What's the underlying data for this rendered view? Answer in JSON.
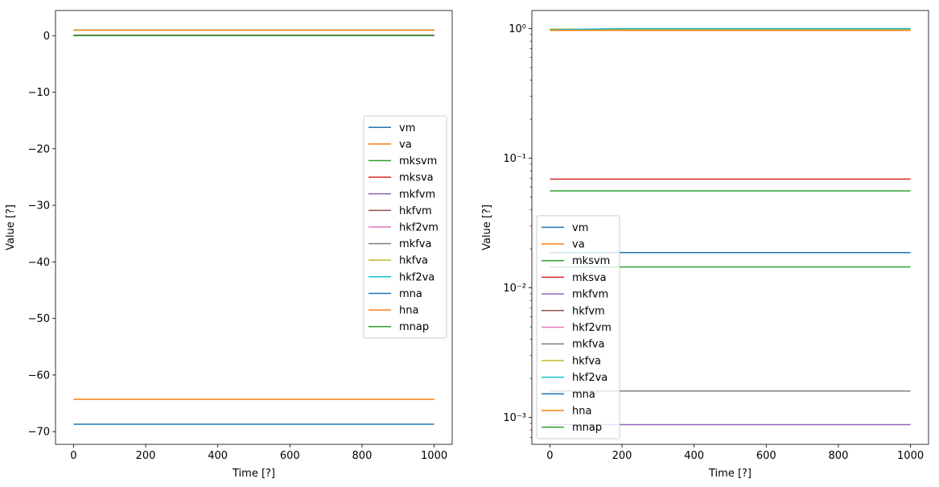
{
  "chart_data": [
    {
      "type": "line",
      "xlabel": "Time [?]",
      "ylabel": "Value [?]",
      "xlim": [
        -50,
        1050
      ],
      "ylim": [
        -72.25,
        4.45
      ],
      "yscale": "linear",
      "xticks": [
        0,
        200,
        400,
        600,
        800,
        1000
      ],
      "xtick_labels": [
        "0",
        "200",
        "400",
        "600",
        "800",
        "1000"
      ],
      "yticks": [
        0,
        -10,
        -20,
        -30,
        -40,
        -50,
        -60,
        -70
      ],
      "ytick_labels": [
        "0",
        "−10",
        "−20",
        "−30",
        "−40",
        "−50",
        "−60",
        "−70"
      ],
      "legend_position": "center-right",
      "series": [
        {
          "name": "vm",
          "color": "#1f77b4",
          "x": [
            0,
            1000
          ],
          "y": [
            -68.7,
            -68.7
          ]
        },
        {
          "name": "va",
          "color": "#ff7f0e",
          "x": [
            0,
            1000
          ],
          "y": [
            -64.3,
            -64.3
          ]
        },
        {
          "name": "mksvm",
          "color": "#2ca02c",
          "x": [
            0,
            1000
          ],
          "y": [
            0.056,
            0.056
          ]
        },
        {
          "name": "mksva",
          "color": "#d62728",
          "x": [
            0,
            1000
          ],
          "y": [
            0.069,
            0.069
          ]
        },
        {
          "name": "mkfvm",
          "color": "#9467bd",
          "x": [
            0,
            1000
          ],
          "y": [
            0.00088,
            0.00088
          ]
        },
        {
          "name": "hkfvm",
          "color": "#8c564b",
          "x": [
            0,
            1000
          ],
          "y": [
            0.99,
            0.99
          ]
        },
        {
          "name": "hkf2vm",
          "color": "#e377c2",
          "x": [
            0,
            1000
          ],
          "y": [
            0.99,
            0.99
          ]
        },
        {
          "name": "mkfva",
          "color": "#7f7f7f",
          "x": [
            0,
            1000
          ],
          "y": [
            0.0016,
            0.0016
          ]
        },
        {
          "name": "hkfva",
          "color": "#bcbd22",
          "x": [
            0,
            1000
          ],
          "y": [
            0.99,
            0.99
          ]
        },
        {
          "name": "hkf2va",
          "color": "#17becf",
          "x": [
            0,
            1000
          ],
          "y": [
            0.99,
            0.99
          ]
        },
        {
          "name": "mna",
          "color": "#1f77b4",
          "x": [
            0,
            1000
          ],
          "y": [
            0.0187,
            0.0187
          ]
        },
        {
          "name": "hna",
          "color": "#ff7f0e",
          "x": [
            0,
            1000
          ],
          "y": [
            0.97,
            0.97
          ]
        },
        {
          "name": "mnap",
          "color": "#2ca02c",
          "x": [
            0,
            1000
          ],
          "y": [
            0.0145,
            0.0145
          ]
        }
      ]
    },
    {
      "type": "line",
      "xlabel": "Time [?]",
      "ylabel": "Value [?]",
      "xlim": [
        -50,
        1050
      ],
      "ylim": [
        0.00062,
        1.38
      ],
      "yscale": "log",
      "xticks": [
        0,
        200,
        400,
        600,
        800,
        1000
      ],
      "xtick_labels": [
        "0",
        "200",
        "400",
        "600",
        "800",
        "1000"
      ],
      "yticks": [
        1,
        0.1,
        0.01,
        0.001
      ],
      "ytick_labels": [
        "10⁰",
        "10⁻¹",
        "10⁻²",
        "10⁻³"
      ],
      "legend_position": "lower-left",
      "series": [
        {
          "name": "vm",
          "color": "#1f77b4",
          "x": [
            0,
            1000
          ],
          "y": [
            0.0187,
            0.0187
          ]
        },
        {
          "name": "va",
          "color": "#ff7f0e",
          "x": [
            0,
            1000
          ],
          "y": [
            0.97,
            0.97
          ]
        },
        {
          "name": "mksvm",
          "color": "#2ca02c",
          "x": [
            0,
            1000
          ],
          "y": [
            0.056,
            0.056
          ]
        },
        {
          "name": "mksva",
          "color": "#d62728",
          "x": [
            0,
            1000
          ],
          "y": [
            0.069,
            0.069
          ]
        },
        {
          "name": "mkfvm",
          "color": "#9467bd",
          "x": [
            0,
            1000
          ],
          "y": [
            0.00088,
            0.00088
          ]
        },
        {
          "name": "hkfvm",
          "color": "#8c564b",
          "x": [
            0,
            1000
          ],
          "y": [
            0.99,
            0.99
          ]
        },
        {
          "name": "hkf2vm",
          "color": "#e377c2",
          "x": [
            0,
            1000
          ],
          "y": [
            0.99,
            0.99
          ]
        },
        {
          "name": "mkfva",
          "color": "#7f7f7f",
          "x": [
            0,
            1000
          ],
          "y": [
            0.0016,
            0.0016
          ]
        },
        {
          "name": "hkfva",
          "color": "#bcbd22",
          "x": [
            0,
            1000
          ],
          "y": [
            0.99,
            0.99
          ]
        },
        {
          "name": "hkf2va",
          "color": "#17becf",
          "x": [
            0,
            50,
            100,
            200,
            400,
            600,
            800,
            1000
          ],
          "y": [
            0.98,
            0.985,
            0.99,
            1.0,
            1.0,
            1.0,
            1.0,
            1.0
          ]
        },
        {
          "name": "mna",
          "color": "#1f77b4",
          "x": [
            0,
            1000
          ],
          "y": [
            0.0187,
            0.0187
          ]
        },
        {
          "name": "hna",
          "color": "#ff7f0e",
          "x": [
            0,
            1000
          ],
          "y": [
            0.97,
            0.97
          ]
        },
        {
          "name": "mnap",
          "color": "#2ca02c",
          "x": [
            0,
            1000
          ],
          "y": [
            0.0145,
            0.0145
          ]
        }
      ]
    }
  ]
}
